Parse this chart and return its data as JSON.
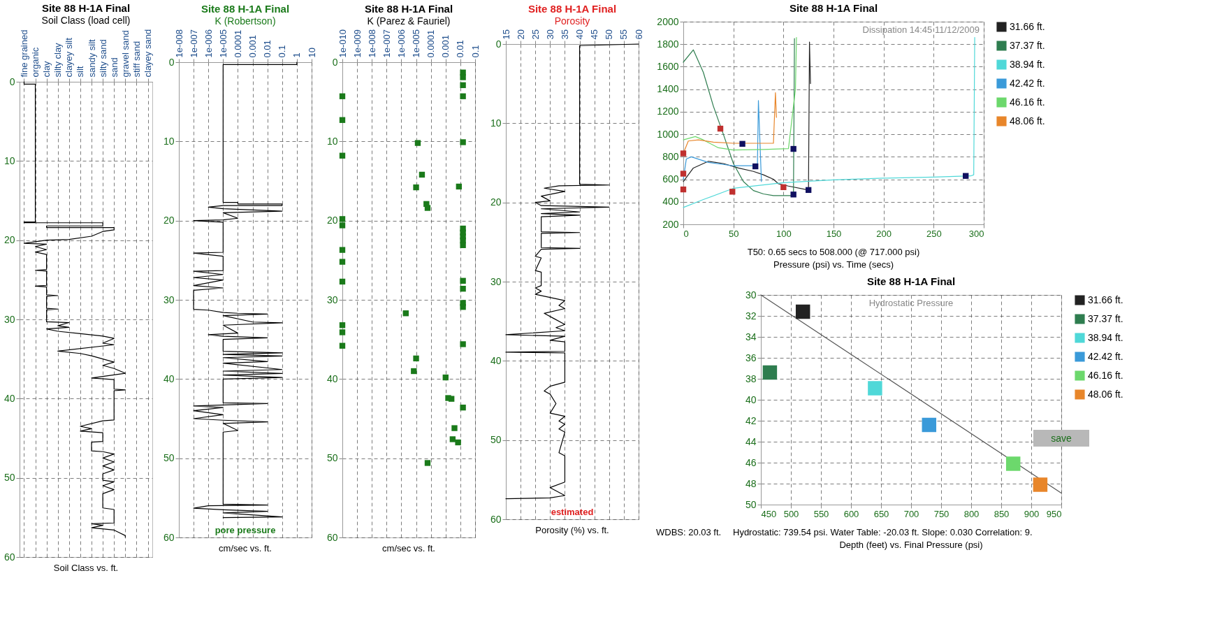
{
  "chart_data": [
    {
      "type": "line",
      "title": "Site 88 H-1A Final",
      "subtitle": "Soil Class (load cell)",
      "xlabel": "Soil Class vs. ft.",
      "categories": [
        "fine grained",
        "organic",
        "clay",
        "silty clay",
        "clayey silt",
        "silt",
        "sandy silt",
        "silty sand",
        "sand",
        "gravel sand",
        "stiff sand",
        "clayey sand"
      ],
      "ylim": [
        60,
        0
      ],
      "yticks": [
        0,
        10,
        20,
        30,
        40,
        50,
        60
      ],
      "grid": true,
      "series": [
        {
          "color": "#000000",
          "x": [
            "fine grained",
            "fine grained",
            "organic",
            "organic",
            "fine grained",
            "fine grained",
            "silty sand",
            "silty sand",
            "clay",
            "clay",
            "sand",
            "sand",
            "silty sand",
            "sandy silt",
            "clayey silt",
            "clay",
            "fine grained",
            "clay",
            "organic",
            "clay",
            "organic",
            "clay",
            "clay",
            "organic",
            "clay",
            "clay",
            "organic",
            "clay",
            "clay",
            "silty clay",
            "clay",
            "clay",
            "silty clay",
            "clay",
            "clay",
            "clayey silt",
            "silty clay",
            "clayey silt",
            "clay",
            "silty clay",
            "silt",
            "silty sand",
            "sand",
            "silty sand",
            "sand",
            "silty clay",
            "silt",
            "sandy silt",
            "silty sand",
            "sand",
            "silty sand",
            "sand",
            "gravel sand",
            "sand",
            "sandy silt",
            "sand",
            "sand",
            "gravel sand",
            "sand",
            "sand",
            "silty sand",
            "silt",
            "sandy silt",
            "silt",
            "silty sand",
            "silty sand",
            "sandy silt",
            "sandy silt",
            "silty sand",
            "sand",
            "silty sand",
            "sand",
            "silty sand",
            "sand",
            "silty sand",
            "silty sand",
            "sand",
            "silty sand",
            "sand",
            "silty sand",
            "silty sand",
            "sand",
            "sand",
            "sandy silt",
            "silty sand",
            "sandy silt",
            "sand",
            "gravel sand",
            "gravel sand"
          ],
          "values": [
            0,
            0.3,
            0.3,
            17.7,
            17.7,
            17.8,
            17.8,
            18.2,
            18.2,
            18.4,
            18.4,
            18.7,
            18.9,
            19.5,
            19.9,
            20,
            20.4,
            20.5,
            20.8,
            21.2,
            21.5,
            21.8,
            23.7,
            23.8,
            23.9,
            25.7,
            25.8,
            25.9,
            26.9,
            27,
            27.1,
            28.6,
            28.7,
            28.8,
            30.3,
            30.4,
            30.8,
            31,
            31.2,
            31.5,
            31.8,
            32.1,
            32.4,
            33,
            33.2,
            34,
            34.3,
            34.6,
            35,
            35.4,
            35.8,
            36.2,
            36.8,
            37,
            37.4,
            37.6,
            38.8,
            38.9,
            39,
            42.7,
            42.8,
            43.5,
            43.8,
            44.1,
            44.3,
            45.4,
            45.5,
            46.6,
            46.7,
            47,
            47.5,
            48,
            48.5,
            49,
            49.5,
            50.3,
            50.5,
            51,
            51.5,
            52,
            53.8,
            54,
            55.7,
            55.8,
            56,
            56.3,
            56.6,
            57.3,
            57.5
          ]
        }
      ]
    },
    {
      "type": "line",
      "title": "Site 88 H-1A Final",
      "subtitle": "K (Robertson)",
      "xlabel": "cm/sec vs. ft.",
      "annotations": [
        "pore pressure"
      ],
      "log": "x",
      "xlim": [
        1e-08,
        10
      ],
      "xticks": [
        {
          "value": 1e-08,
          "label": "1e-008"
        },
        {
          "value": 1e-07,
          "label": "1e-007"
        },
        {
          "value": 1e-06,
          "label": "1e-006"
        },
        {
          "value": 1e-05,
          "label": "1e-005"
        },
        0.0001,
        0.001,
        0.01,
        0.1,
        1,
        10
      ],
      "ylim": [
        60,
        0
      ],
      "yticks": [
        0,
        10,
        20,
        30,
        40,
        50,
        60
      ],
      "grid": true,
      "series": [
        {
          "color": "#000000",
          "x": [
            1,
            1,
            1e-05,
            1e-05,
            0.0001,
            0.0001,
            0.1,
            0.1,
            1e-05,
            1e-06,
            1e-05,
            0.1,
            1e-05,
            0.0001,
            1e-05,
            1e-07,
            1e-06,
            1e-05,
            1e-05,
            1e-07,
            1e-06,
            1e-05,
            1e-05,
            1e-07,
            1e-05,
            1e-07,
            1e-05,
            1e-07,
            1e-05,
            1e-07,
            1e-07,
            1e-06,
            1e-05,
            0.0001,
            0.01,
            1e-05,
            0.001,
            0.1,
            1e-05,
            0.0001,
            1e-06,
            1e-05,
            0.01,
            1e-05,
            1e-05,
            0.1,
            1e-05,
            0.1,
            1e-05,
            0.01,
            1e-05,
            0.1,
            1e-05,
            0.1,
            1e-05,
            0.1,
            1e-05,
            1e-05,
            0.01,
            1e-07,
            1e-05,
            1e-07,
            1e-05,
            1e-07,
            1e-05,
            0.01,
            1e-05,
            0.0001,
            1e-05,
            1e-05,
            0.01,
            1e-06,
            1e-07,
            1e-05,
            0.01,
            1e-05,
            0.1,
            1e-05
          ],
          "values": [
            0,
            0.3,
            0.3,
            17.7,
            17.7,
            17.9,
            17.9,
            18.1,
            18.1,
            18.3,
            18.5,
            18.8,
            19,
            19.7,
            19.9,
            20,
            20.1,
            20.2,
            24,
            24.1,
            24.3,
            24.5,
            26.3,
            26.4,
            26.8,
            27.2,
            27.5,
            28.2,
            28.5,
            28.8,
            31.2,
            31.3,
            31.6,
            31.7,
            31.8,
            32,
            32.8,
            32.9,
            33.2,
            34.2,
            34.4,
            34.6,
            34.8,
            35,
            36.5,
            36.7,
            36.9,
            37.1,
            37.3,
            37.8,
            38,
            38.8,
            39,
            39.3,
            39.5,
            39.8,
            40,
            43,
            43.1,
            43.4,
            43.6,
            44,
            44.5,
            45,
            45.2,
            45.4,
            45.6,
            46.5,
            46.7,
            55.8,
            55.9,
            56,
            56.3,
            56.5,
            56.7,
            56.9,
            57.4,
            57.5
          ]
        }
      ]
    },
    {
      "type": "scatter",
      "title": "Site 88 H-1A Final",
      "subtitle": "K (Parez & Fauriel)",
      "xlabel": "cm/sec vs. ft.",
      "log": "x",
      "xlim": [
        1e-10,
        0.1
      ],
      "xticks": [
        {
          "value": 1e-10,
          "label": "1e-010"
        },
        {
          "value": 1e-09,
          "label": "1e-009"
        },
        {
          "value": 1e-08,
          "label": "1e-008"
        },
        {
          "value": 1e-07,
          "label": "1e-007"
        },
        {
          "value": 1e-06,
          "label": "1e-006"
        },
        {
          "value": 1e-05,
          "label": "1e-005"
        },
        0.0001,
        0.001,
        0.01,
        0.1
      ],
      "ylim": [
        60,
        0
      ],
      "yticks": [
        0,
        10,
        20,
        30,
        40,
        50,
        60
      ],
      "grid": true,
      "marker": "square",
      "series": [
        {
          "color": "#1a7a1a",
          "x": [
            0.015,
            0.015,
            0.015,
            0.015,
            0.015,
            0.015,
            0.015,
            0.015,
            0.015,
            0.015,
            0.015,
            0.015,
            0.015,
            0.015,
            0.015,
            0.015,
            0.008,
            1e-10,
            1e-10,
            1e-10,
            1e-10,
            1e-10,
            1e-10,
            1e-10,
            1e-10,
            1e-10,
            1e-10,
            1e-10,
            1.3e-05,
            2.5e-05,
            1e-05,
            5e-05,
            6e-05,
            2e-06,
            1e-05,
            7e-06,
            0.001,
            0.0015,
            0.0025,
            0.004,
            0.003,
            0.007,
            6e-05
          ],
          "values": [
            1.3,
            1.9,
            2.9,
            4.3,
            10.1,
            21,
            21.5,
            22,
            22.5,
            23.1,
            27.6,
            28.6,
            30.4,
            30.9,
            35.6,
            43.6,
            15.7,
            4.3,
            7.3,
            11.8,
            19.8,
            20.6,
            23.7,
            25.2,
            27.7,
            33.2,
            34.1,
            35.8,
            10.2,
            14.2,
            15.8,
            17.9,
            18.4,
            31.7,
            37.4,
            39,
            39.8,
            42.4,
            42.5,
            46.2,
            47.6,
            48,
            50.6
          ]
        }
      ]
    },
    {
      "type": "line",
      "title": "Site 88 H-1A Final",
      "subtitle": "Porosity",
      "xlabel": "Porosity (%) vs. ft.",
      "annotations": [
        "estimated"
      ],
      "xlim": [
        15,
        60
      ],
      "xticks": [
        15,
        20,
        25,
        30,
        35,
        40,
        45,
        50,
        55,
        60
      ],
      "ylim": [
        60,
        0
      ],
      "yticks": [
        0,
        10,
        20,
        30,
        40,
        50,
        60
      ],
      "grid": true,
      "series": [
        {
          "color": "#000000",
          "x": [
            60,
            40,
            40,
            50,
            33,
            28,
            35,
            27,
            30,
            25,
            27,
            50,
            27,
            40,
            27,
            40,
            27,
            27,
            40,
            27,
            27,
            40,
            27,
            25,
            27,
            25,
            27,
            27,
            25,
            27,
            25,
            30,
            35,
            33,
            35,
            28,
            31,
            35,
            32,
            35,
            15,
            35,
            30,
            35,
            35,
            15,
            35,
            35,
            30,
            28,
            30,
            32,
            30,
            35,
            33,
            35,
            33,
            35,
            33,
            35,
            35,
            30,
            32,
            35,
            30,
            15
          ],
          "values": [
            0,
            0.2,
            17.7,
            17.8,
            17.9,
            18.2,
            18.6,
            19.2,
            19.8,
            20,
            20.4,
            20.6,
            20.8,
            21.2,
            21.4,
            21.6,
            21.8,
            23.7,
            23.8,
            23.9,
            25.7,
            25.8,
            25.9,
            26.8,
            27,
            28.6,
            28.8,
            30.5,
            30.8,
            31.2,
            31.6,
            32,
            32.4,
            33,
            33.4,
            34,
            34.6,
            35.4,
            35.8,
            36.2,
            36.7,
            36.9,
            37.4,
            37.6,
            38.8,
            38.9,
            39,
            42.7,
            43.2,
            43.8,
            44.2,
            45.4,
            46.6,
            47,
            47.6,
            48,
            48.6,
            49,
            51.6,
            52,
            55.3,
            56,
            56.4,
            57,
            57.3,
            57.4
          ]
        }
      ]
    },
    {
      "type": "line",
      "title": "Site 88 H-1A Final",
      "xlabel": "Pressure (psi) vs. Time (secs)",
      "annotations": [
        "Dissipation    14:45  11/12/2009",
        "T50: 0.65 secs to 508.000 (@ 717.000 psi)"
      ],
      "xlim": [
        0,
        300
      ],
      "xticks": [
        0,
        50,
        100,
        150,
        200,
        250,
        300
      ],
      "ylim": [
        200,
        2000
      ],
      "yticks": [
        200,
        400,
        600,
        800,
        1000,
        1200,
        1400,
        1600,
        1800,
        2000
      ],
      "grid": true,
      "legend": "right",
      "series": [
        {
          "name": "31.66 ft.",
          "color": "#222222",
          "x": [
            0,
            10,
            25,
            40,
            55,
            70,
            80,
            90,
            95,
            105,
            125,
            126,
            127
          ],
          "values": [
            580,
            700,
            760,
            740,
            700,
            670,
            640,
            600,
            560,
            540,
            505,
            1820,
            1450
          ]
        },
        {
          "name": "37.37 ft.",
          "color": "#2e7d4f",
          "x": [
            0,
            10,
            20,
            30,
            40,
            50,
            60,
            70,
            80,
            90,
            110,
            111
          ],
          "values": [
            1640,
            1750,
            1550,
            1250,
            1000,
            740,
            580,
            500,
            470,
            455,
            455,
            1850
          ]
        },
        {
          "name": "38.94 ft.",
          "color": "#4fd8d8",
          "x": [
            0,
            20,
            50,
            100,
            150,
            200,
            250,
            287,
            290,
            291
          ],
          "values": [
            350,
            420,
            520,
            570,
            595,
            610,
            620,
            630,
            640,
            1860
          ]
        },
        {
          "name": "42.42 ft.",
          "color": "#3a9ad9",
          "x": [
            0,
            3,
            8,
            25,
            50,
            74,
            75,
            78
          ],
          "values": [
            600,
            780,
            800,
            750,
            720,
            720,
            1300,
            580
          ]
        },
        {
          "name": "46.16 ft.",
          "color": "#6cd86c",
          "x": [
            0,
            12,
            20,
            35,
            50,
            80,
            105,
            112,
            113
          ],
          "values": [
            950,
            980,
            950,
            880,
            860,
            865,
            873,
            1400,
            1860
          ]
        },
        {
          "name": "48.06 ft.",
          "color": "#e8862a",
          "x": [
            0,
            5,
            15,
            30,
            50,
            90,
            92,
            93
          ],
          "values": [
            830,
            940,
            950,
            930,
            920,
            920,
            1370,
            1150
          ]
        },
        {
          "type": "scatter",
          "marker": "square",
          "color": "#c0302f",
          "x": [
            0,
            0,
            0,
            37,
            49,
            100
          ],
          "values": [
            830,
            650,
            510,
            1050,
            490,
            530
          ]
        },
        {
          "type": "scatter",
          "marker": "square",
          "color": "#101060",
          "x": [
            59,
            72,
            110,
            110,
            125,
            282
          ],
          "values": [
            915,
            715,
            870,
            465,
            505,
            630
          ]
        }
      ]
    },
    {
      "type": "scatter",
      "title": "Site 88 H-1A Final",
      "xlabel": "Depth (feet) vs. Final Pressure (psi)",
      "annotations": [
        "Hydrostatic Pressure",
        "save",
        "WDBS: 20.03 ft.",
        "Hydrostatic: 739.54 psi.   Water Table: -20.03 ft.   Slope: 0.030   Correlation: 9."
      ],
      "xlim": [
        450,
        950
      ],
      "xticks": [
        450,
        500,
        550,
        600,
        650,
        700,
        750,
        800,
        850,
        900,
        950
      ],
      "ylim": [
        50,
        30
      ],
      "yticks": [
        30,
        32,
        34,
        36,
        38,
        40,
        42,
        44,
        46,
        48,
        50
      ],
      "grid": true,
      "legend": "right",
      "series": [
        {
          "type": "line",
          "color": "#555555",
          "x": [
            450,
            950
          ],
          "values": [
            30,
            48.9
          ]
        },
        {
          "name": "31.66 ft.",
          "marker": "square",
          "color": "#222222",
          "x": [
            520
          ],
          "values": [
            31.6
          ]
        },
        {
          "name": "37.37 ft.",
          "marker": "square",
          "color": "#2e7d4f",
          "x": [
            465
          ],
          "values": [
            37.4
          ]
        },
        {
          "name": "38.94 ft.",
          "marker": "square",
          "color": "#4fd8d8",
          "x": [
            640
          ],
          "values": [
            38.9
          ]
        },
        {
          "name": "42.42 ft.",
          "marker": "square",
          "color": "#3a9ad9",
          "x": [
            730
          ],
          "values": [
            42.4
          ]
        },
        {
          "name": "46.16 ft.",
          "marker": "square",
          "color": "#6cd86c",
          "x": [
            870
          ],
          "values": [
            46.1
          ]
        },
        {
          "name": "48.06 ft.",
          "marker": "square",
          "color": "#e8862a",
          "x": [
            915
          ],
          "values": [
            48.1
          ]
        }
      ]
    }
  ]
}
